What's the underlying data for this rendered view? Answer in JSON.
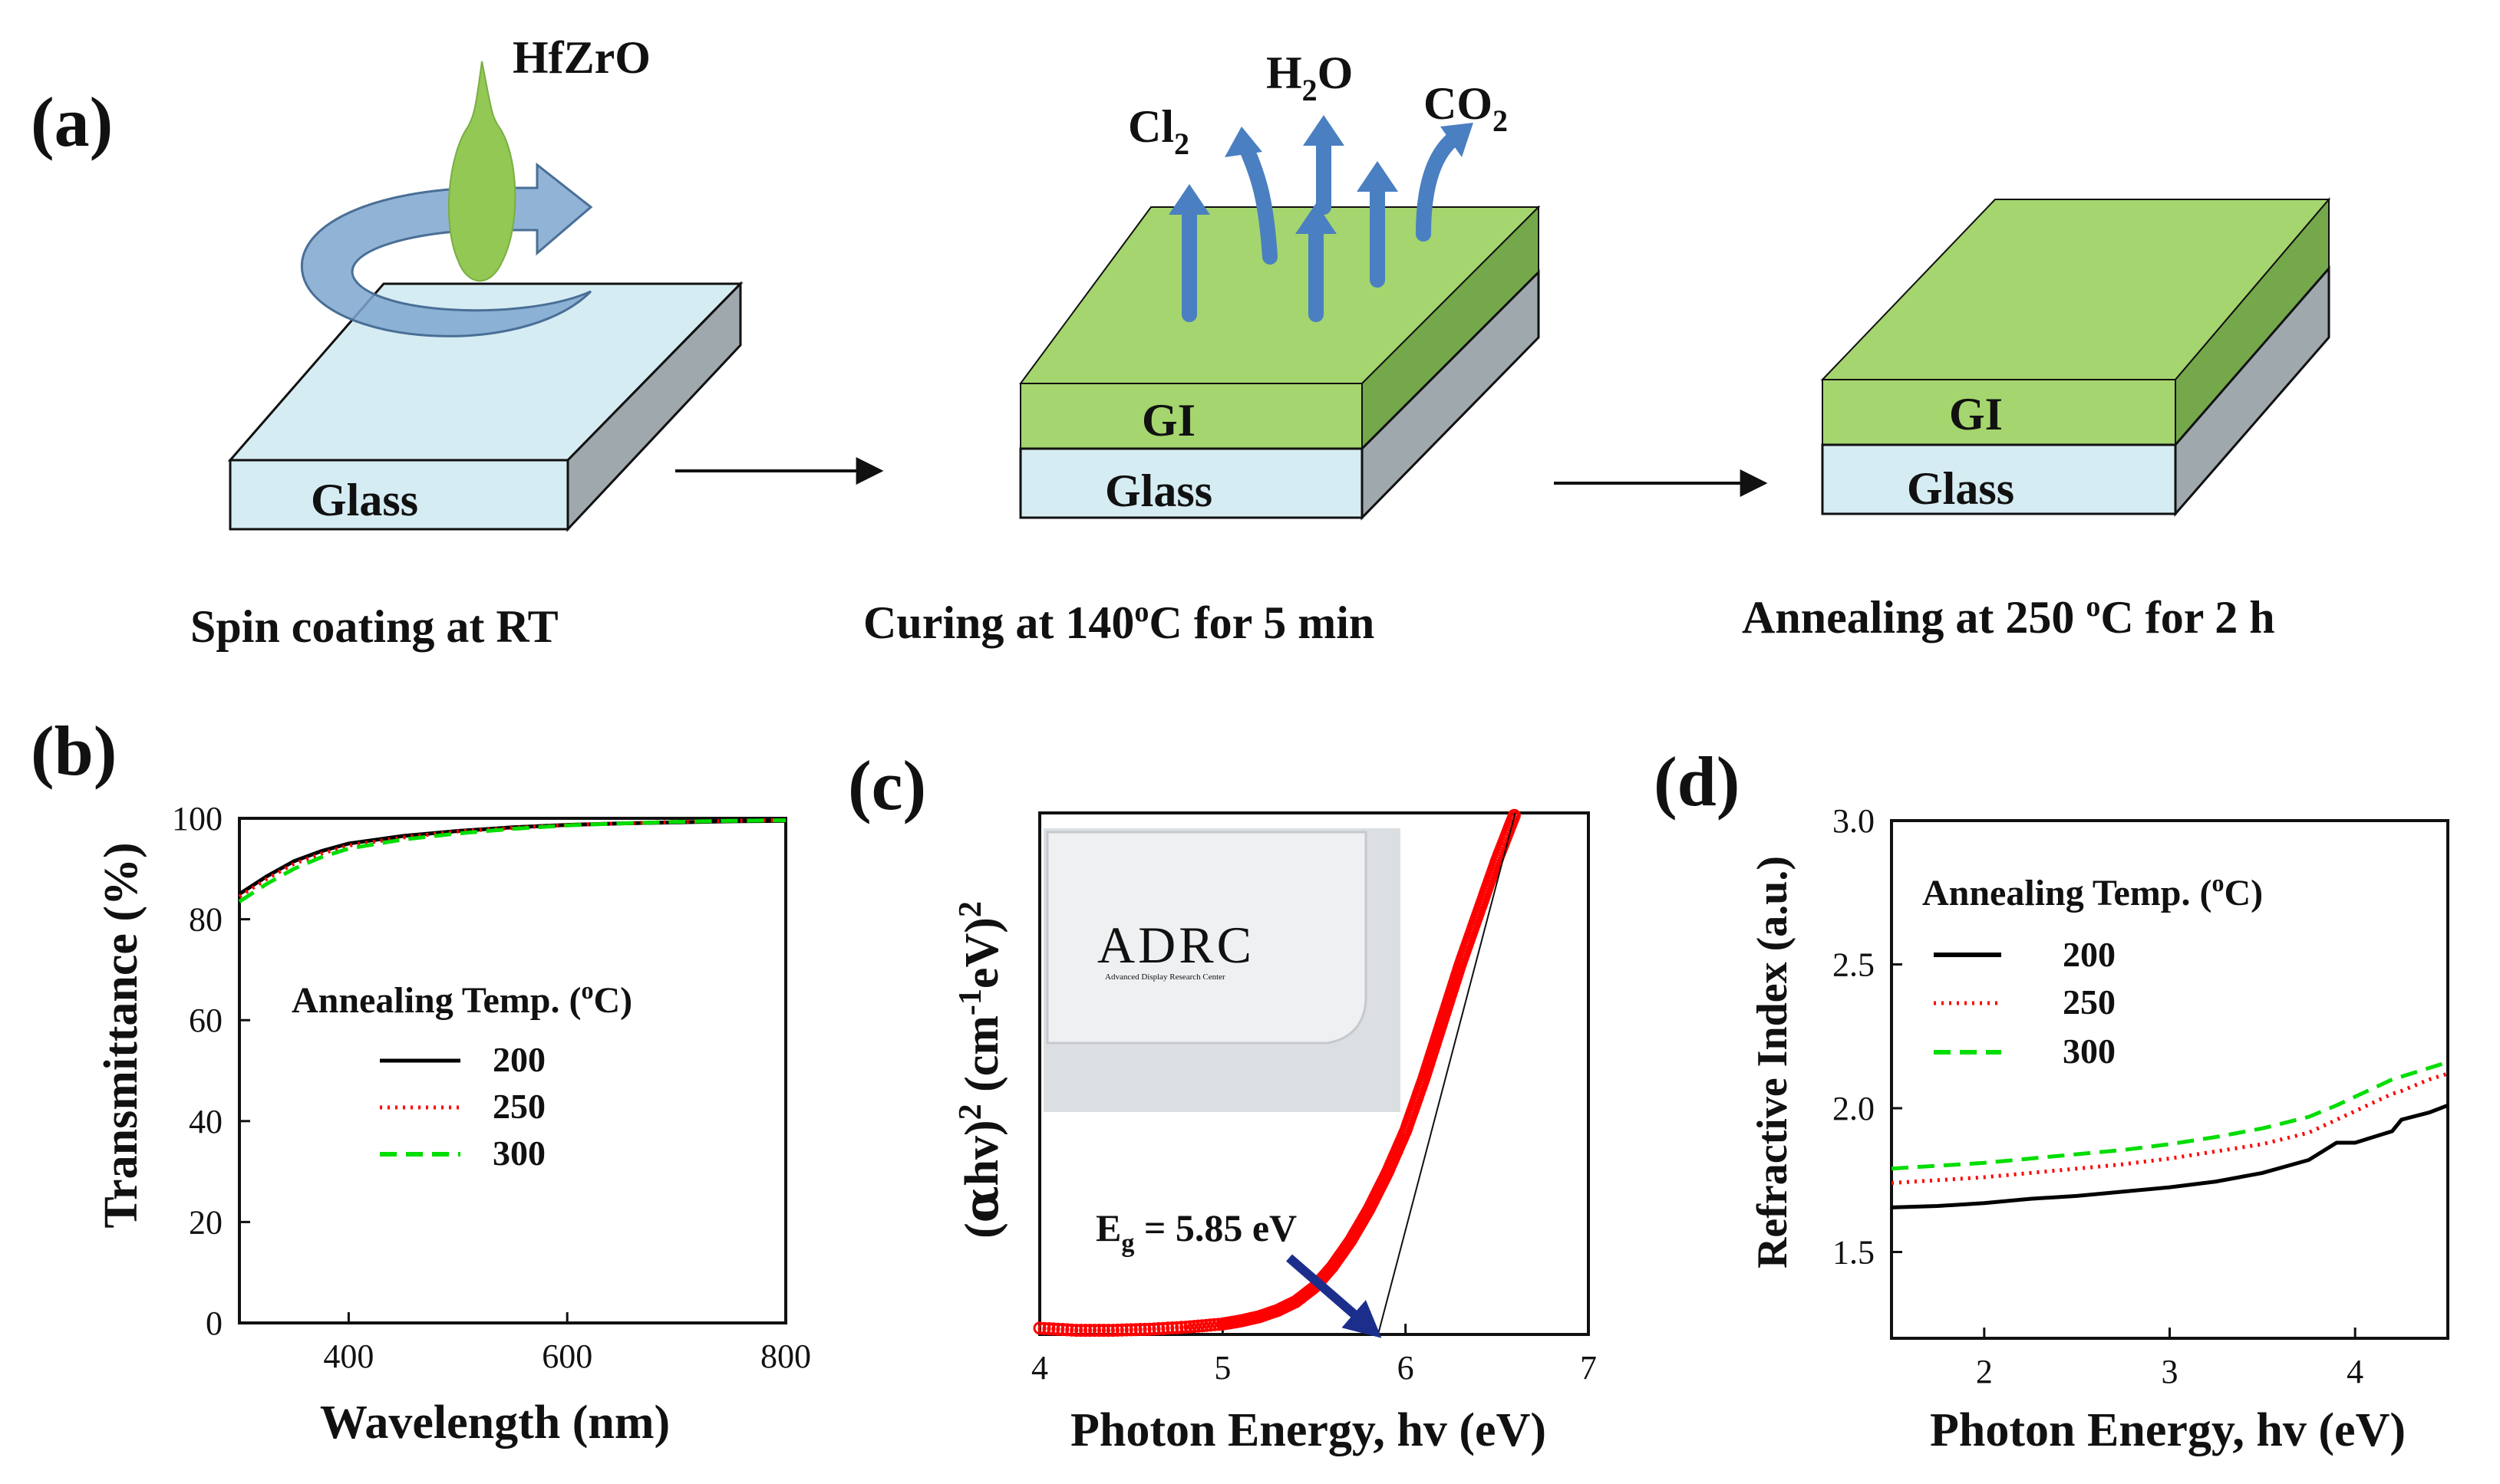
{
  "panel_a": {
    "label": "(a)",
    "precursor": "HfZrO",
    "substrate": "Glass",
    "film": "GI",
    "gases": [
      {
        "main": "Cl",
        "sub": "2"
      },
      {
        "main": "H",
        "sub": "2",
        "tail": "O"
      },
      {
        "main": "CO",
        "sub": "2"
      }
    ],
    "steps": [
      {
        "text": "Spin coating at RT"
      },
      {
        "pre": "Curing at 140",
        "sup": "o",
        "post": "C for 5 min"
      },
      {
        "pre": "Annealing at 250 ",
        "sup": "o",
        "post": "C for 2 h"
      }
    ],
    "colors": {
      "glass": "#d6ecf3",
      "film": "#a5d56e",
      "arrow": "#4a7fc1",
      "drop": "#92c853"
    }
  },
  "chart_data": [
    {
      "panel_label": "(b)",
      "type": "line",
      "xlabel": "Wavelength (nm)",
      "ylabel": "Transmittance (%)",
      "xlim": [
        300,
        800
      ],
      "ylim": [
        0,
        100
      ],
      "xticks": [
        400,
        600,
        800
      ],
      "yticks": [
        0,
        20,
        40,
        60,
        80,
        100
      ],
      "legend_title": "Annealing Temp. (",
      "legend_title_sup": "o",
      "legend_title_end": "C)",
      "legend_position": "center-left",
      "x": [
        300,
        325,
        350,
        375,
        400,
        450,
        500,
        550,
        600,
        650,
        700,
        750,
        800
      ],
      "series": [
        {
          "name": "200",
          "color": "#000000",
          "dash": "solid",
          "values": [
            85,
            88.5,
            91.5,
            93.5,
            95,
            96.5,
            97.5,
            98.2,
            98.7,
            99,
            99.2,
            99.4,
            99.5
          ]
        },
        {
          "name": "250",
          "color": "#ff0000",
          "dash": "dotted",
          "values": [
            84.5,
            88,
            91,
            93,
            94.6,
            96.2,
            97.4,
            98.1,
            98.7,
            99,
            99.3,
            99.5,
            99.6
          ]
        },
        {
          "name": "300",
          "color": "#00dd00",
          "dash": "dashed",
          "values": [
            83.5,
            87,
            90,
            92.3,
            94,
            95.8,
            97,
            97.9,
            98.6,
            99,
            99.3,
            99.5,
            99.6
          ]
        }
      ]
    },
    {
      "panel_label": "(c)",
      "type": "scatter",
      "xlabel": "Photon Energy, hv (eV)",
      "ylabel_prefix": "(",
      "ylabel_alpha": "α",
      "ylabel_hv": "hv)",
      "ylabel_sup1": "2",
      "ylabel_units": " (cm",
      "ylabel_sup2": "-1",
      "ylabel_units2": "eV)",
      "ylabel_sup3": "2",
      "xlim": [
        4,
        7
      ],
      "ylim": [
        0,
        1
      ],
      "xticks": [
        4,
        5,
        6,
        7
      ],
      "annotation_main": "E",
      "annotation_sub": "g",
      "annotation_value": " = 5.85 eV",
      "band_gap_eV": 5.85,
      "tangent": {
        "x": [
          5.85,
          6.6
        ],
        "y": [
          0,
          1.0
        ]
      },
      "inset_logo": "ADRC",
      "inset_logo_subtitle": "Advanced Display Research Center",
      "x": [
        4.0,
        4.2,
        4.4,
        4.6,
        4.8,
        5.0,
        5.1,
        5.2,
        5.3,
        5.4,
        5.5,
        5.6,
        5.7,
        5.8,
        5.9,
        6.0,
        6.1,
        6.2,
        6.3,
        6.4,
        6.5,
        6.6
      ],
      "values": [
        0.012,
        0.008,
        0.008,
        0.01,
        0.014,
        0.02,
        0.026,
        0.034,
        0.046,
        0.063,
        0.09,
        0.13,
        0.18,
        0.24,
        0.31,
        0.39,
        0.49,
        0.6,
        0.71,
        0.81,
        0.91,
        1.0
      ],
      "series_color": "#ff0000"
    },
    {
      "panel_label": "(d)",
      "type": "line",
      "xlabel": "Photon Energy, hv (eV)",
      "ylabel": "Refractive Index (a.u.)",
      "xlim": [
        1.5,
        4.5
      ],
      "ylim": [
        1.2,
        3.0
      ],
      "xticks": [
        2,
        3,
        4
      ],
      "yticks": [
        1.5,
        2.0,
        2.5,
        3.0
      ],
      "ytick_labels": [
        "1.5",
        "2.0",
        "2.5",
        "3.0"
      ],
      "legend_title": "Annealing Temp. (",
      "legend_title_sup": "o",
      "legend_title_end": "C)",
      "legend_position": "upper-left",
      "x": [
        1.5,
        1.75,
        2.0,
        2.25,
        2.5,
        2.75,
        3.0,
        3.25,
        3.5,
        3.75,
        3.9,
        4.0,
        4.1,
        4.2,
        4.25,
        4.4,
        4.5
      ],
      "series": [
        {
          "name": "200",
          "color": "#000000",
          "dash": "solid",
          "values": [
            1.655,
            1.66,
            1.67,
            1.685,
            1.695,
            1.71,
            1.725,
            1.745,
            1.775,
            1.82,
            1.88,
            1.88,
            1.9,
            1.92,
            1.96,
            1.985,
            2.01
          ]
        },
        {
          "name": "250",
          "color": "#ff0000",
          "dash": "dotted",
          "values": [
            1.74,
            1.75,
            1.76,
            1.775,
            1.79,
            1.805,
            1.825,
            1.85,
            1.875,
            1.915,
            1.96,
            1.99,
            2.02,
            2.05,
            2.06,
            2.1,
            2.12
          ]
        },
        {
          "name": "300",
          "color": "#00dd00",
          "dash": "dashed",
          "values": [
            1.79,
            1.8,
            1.81,
            1.825,
            1.84,
            1.855,
            1.875,
            1.9,
            1.93,
            1.97,
            2.01,
            2.04,
            2.07,
            2.1,
            2.11,
            2.14,
            2.16
          ]
        }
      ]
    }
  ]
}
